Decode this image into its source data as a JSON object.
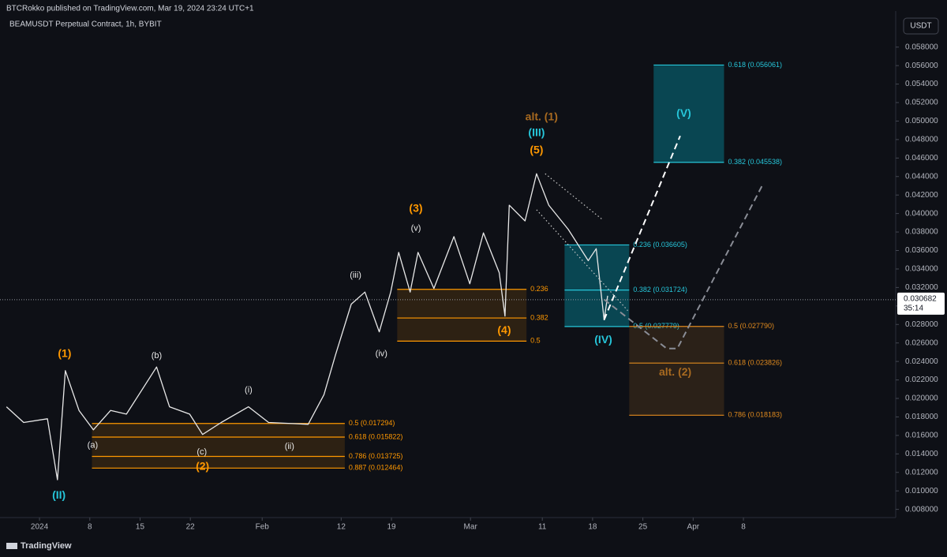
{
  "header": {
    "published": "BTCRokko published on TradingView.com, Mar 19, 2024 23:24 UTC+1",
    "symbol": "BEAMUSDT Perpetual Contract, 1h, BYBIT",
    "currency_button": "USDT",
    "logo": "TradingView"
  },
  "chart_data": {
    "type": "line",
    "color": "#e8e8e8",
    "x": [
      -4.6,
      -2.2,
      1.1,
      2.5,
      3.6,
      5.5,
      7.5,
      9.9,
      12.1,
      16.3,
      18.1,
      20.9,
      22.7,
      25.3,
      29.1,
      31.9,
      37.4,
      39.6,
      41.2,
      43.4,
      45.3,
      47.3,
      48.9,
      50.0,
      51.6,
      52.7,
      54.9,
      57.7,
      59.9,
      61.8,
      64.0,
      64.8,
      65.4,
      67.6,
      69.2,
      70.9,
      73.6,
      76.4,
      77.5,
      78.6,
      79.1
    ],
    "values": [
      0.0191,
      0.0174,
      0.0178,
      0.0112,
      0.023,
      0.0187,
      0.0166,
      0.0187,
      0.0183,
      0.0234,
      0.0191,
      0.0183,
      0.0161,
      0.0174,
      0.0191,
      0.0174,
      0.0172,
      0.0204,
      0.0247,
      0.0302,
      0.0315,
      0.0272,
      0.0315,
      0.0358,
      0.0315,
      0.0358,
      0.0319,
      0.0375,
      0.0324,
      0.0379,
      0.0336,
      0.0289,
      0.0409,
      0.0392,
      0.0443,
      0.0409,
      0.0383,
      0.0349,
      0.0362,
      0.0285,
      0.0311
    ],
    "xlim": [
      -5.5,
      119.2
    ],
    "xticks": [
      {
        "value": 0,
        "label": "2024"
      },
      {
        "value": 7,
        "label": "8"
      },
      {
        "value": 14,
        "label": "15"
      },
      {
        "value": 21,
        "label": "22"
      },
      {
        "value": 31,
        "label": "Feb"
      },
      {
        "value": 42,
        "label": "12"
      },
      {
        "value": 49,
        "label": "19"
      },
      {
        "value": 60,
        "label": "Mar"
      },
      {
        "value": 70,
        "label": "11"
      },
      {
        "value": 77,
        "label": "18"
      },
      {
        "value": 84,
        "label": "25"
      },
      {
        "value": 91,
        "label": "Apr"
      },
      {
        "value": 98,
        "label": "8"
      }
    ],
    "ylim": [
      0.0072,
      0.0619
    ],
    "yticks": [
      {
        "value": 0.008,
        "label": "0.008000"
      },
      {
        "value": 0.01,
        "label": "0.010000"
      },
      {
        "value": 0.012,
        "label": "0.012000"
      },
      {
        "value": 0.014,
        "label": "0.014000"
      },
      {
        "value": 0.016,
        "label": "0.016000"
      },
      {
        "value": 0.018,
        "label": "0.018000"
      },
      {
        "value": 0.02,
        "label": "0.020000"
      },
      {
        "value": 0.022,
        "label": "0.022000"
      },
      {
        "value": 0.024,
        "label": "0.024000"
      },
      {
        "value": 0.026,
        "label": "0.026000"
      },
      {
        "value": 0.028,
        "label": "0.028000"
      },
      {
        "value": 0.03,
        "label": "0.030000"
      },
      {
        "value": 0.032,
        "label": "0.032000"
      },
      {
        "value": 0.034,
        "label": "0.034000"
      },
      {
        "value": 0.036,
        "label": "0.036000"
      },
      {
        "value": 0.038,
        "label": "0.038000"
      },
      {
        "value": 0.04,
        "label": "0.040000"
      },
      {
        "value": 0.042,
        "label": "0.042000"
      },
      {
        "value": 0.044,
        "label": "0.044000"
      },
      {
        "value": 0.046,
        "label": "0.046000"
      },
      {
        "value": 0.048,
        "label": "0.048000"
      },
      {
        "value": 0.05,
        "label": "0.050000"
      },
      {
        "value": 0.052,
        "label": "0.052000"
      },
      {
        "value": 0.054,
        "label": "0.054000"
      },
      {
        "value": 0.056,
        "label": "0.056000"
      },
      {
        "value": 0.058,
        "label": "0.058000"
      }
    ],
    "last_price": 0.030682,
    "countdown": "35:14",
    "fib_boxes": [
      {
        "x": [
          7.3,
          42.5
        ],
        "color": "#ff9800",
        "fill": "rgba(255,152,0,0.13)",
        "levels": [
          {
            "text": "0.5 (0.017294)",
            "price": 0.017294
          },
          {
            "text": "0.618 (0.015822)",
            "price": 0.015822
          },
          {
            "text": "0.786 (0.013725)",
            "price": 0.013725
          },
          {
            "text": "0.887 (0.012464)",
            "price": 0.012464
          }
        ]
      },
      {
        "x": [
          49.8,
          67.8
        ],
        "color": "#ff9800",
        "fill": "rgba(255,152,0,0.13)",
        "levels": [
          {
            "text": "0.236",
            "price": 0.0318
          },
          {
            "text": "0.382",
            "price": 0.0287
          },
          {
            "text": "0.5",
            "price": 0.0262
          }
        ]
      },
      {
        "x": [
          73.1,
          82.1
        ],
        "color": "#26c6da",
        "fill": "rgba(0,188,212,0.32)",
        "levels": [
          {
            "text": "0.236 (0.036605)",
            "price": 0.036605
          },
          {
            "text": "0.382 (0.031724)",
            "price": 0.031724
          },
          {
            "text": "0.5 (0.027779)",
            "price": 0.027779
          }
        ]
      },
      {
        "x": [
          82.1,
          95.3
        ],
        "color": "#e08a1e",
        "fill": "rgba(150,95,30,0.22)",
        "levels": [
          {
            "text": "0.5 (0.027790)",
            "price": 0.02779
          },
          {
            "text": "0.618 (0.023826)",
            "price": 0.023826
          },
          {
            "text": "0.786 (0.018183)",
            "price": 0.018183
          }
        ]
      },
      {
        "x": [
          85.5,
          95.3
        ],
        "color": "#26c6da",
        "fill": "rgba(0,188,212,0.32)",
        "levels": [
          {
            "text": "0.618 (0.056061)",
            "price": 0.056061
          },
          {
            "text": "0.382 (0.045538)",
            "price": 0.045538
          }
        ]
      }
    ],
    "drawings": [
      {
        "style": "dashed",
        "color": "#ffffff",
        "points": [
          [
            78.6,
            0.0285
          ],
          [
            89.2,
            0.0484
          ]
        ]
      },
      {
        "style": "dashed",
        "color": "#8a8d96",
        "points": [
          [
            78.6,
            0.0307
          ],
          [
            87.3,
            0.0254
          ],
          [
            88.8,
            0.0254
          ],
          [
            100.8,
            0.0433
          ]
        ]
      },
      {
        "style": "dotted",
        "color": "#c8c8c8",
        "points": [
          [
            70.4,
            0.0443
          ],
          [
            78.3,
            0.0394
          ]
        ]
      },
      {
        "style": "dotted",
        "color": "#c8c8c8",
        "points": [
          [
            69.2,
            0.0404
          ],
          [
            81.9,
            0.0295
          ]
        ]
      }
    ],
    "annotations": [
      {
        "text": "(1)",
        "x": 3.5,
        "y": 0.0248,
        "color": "#ff9800"
      },
      {
        "text": "(II)",
        "x": 2.7,
        "y": 0.0095,
        "color": "#26c6da"
      },
      {
        "text": "(a)",
        "x": 7.4,
        "y": 0.0149,
        "color": "#e8e8e8"
      },
      {
        "text": "(b)",
        "x": 16.3,
        "y": 0.0246,
        "color": "#e8e8e8"
      },
      {
        "text": "(c)",
        "x": 22.6,
        "y": 0.0142,
        "color": "#e8e8e8"
      },
      {
        "text": "(2)",
        "x": 22.7,
        "y": 0.0126,
        "color": "#ff9800"
      },
      {
        "text": "(i)",
        "x": 29.1,
        "y": 0.0209,
        "color": "#e8e8e8"
      },
      {
        "text": "(ii)",
        "x": 34.8,
        "y": 0.0148,
        "color": "#e8e8e8"
      },
      {
        "text": "(iii)",
        "x": 44.0,
        "y": 0.0333,
        "color": "#e8e8e8"
      },
      {
        "text": "(iv)",
        "x": 47.6,
        "y": 0.0248,
        "color": "#e8e8e8"
      },
      {
        "text": "(v)",
        "x": 52.4,
        "y": 0.0384,
        "color": "#e8e8e8"
      },
      {
        "text": "(3)",
        "x": 52.4,
        "y": 0.0405,
        "color": "#ff9800"
      },
      {
        "text": "(4)",
        "x": 64.7,
        "y": 0.0273,
        "color": "#ff9800"
      },
      {
        "text": "(5)",
        "x": 69.2,
        "y": 0.0468,
        "color": "#ff9800"
      },
      {
        "text": "(III)",
        "x": 69.2,
        "y": 0.0487,
        "color": "#26c6da"
      },
      {
        "text": "alt. (1)",
        "x": 69.9,
        "y": 0.0504,
        "color": "#a86a20"
      },
      {
        "text": "(IV)",
        "x": 78.5,
        "y": 0.0263,
        "color": "#26c6da"
      },
      {
        "text": "(V)",
        "x": 89.7,
        "y": 0.0508,
        "color": "#26c6da"
      },
      {
        "text": "alt. (2)",
        "x": 88.5,
        "y": 0.0228,
        "color": "#a86a20"
      }
    ]
  }
}
